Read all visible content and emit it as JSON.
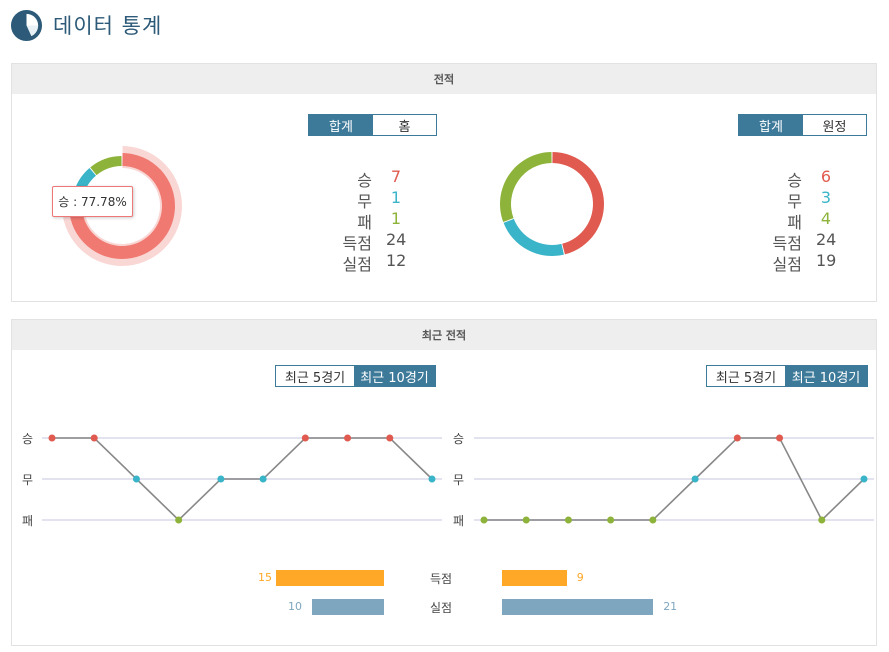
{
  "header": {
    "title": "데이터 통계",
    "logo_icon": "pie-chart-icon"
  },
  "record_panel": {
    "title": "전적",
    "home": {
      "toggle": {
        "total": "합계",
        "venue": "홈",
        "active": "total"
      },
      "tooltip": "승 : 77.78%",
      "stats": [
        {
          "label": "승",
          "value": "7",
          "color": "#e05a4f"
        },
        {
          "label": "무",
          "value": "1",
          "color": "#3ab4c8"
        },
        {
          "label": "패",
          "value": "1",
          "color": "#8db33a"
        },
        {
          "label": "득점",
          "value": "24",
          "color": "#555555"
        },
        {
          "label": "실점",
          "value": "12",
          "color": "#555555"
        }
      ]
    },
    "away": {
      "toggle": {
        "total": "합계",
        "venue": "원정",
        "active": "total"
      },
      "stats": [
        {
          "label": "승",
          "value": "6",
          "color": "#e05a4f"
        },
        {
          "label": "무",
          "value": "3",
          "color": "#3ab4c8"
        },
        {
          "label": "패",
          "value": "4",
          "color": "#8db33a"
        },
        {
          "label": "득점",
          "value": "24",
          "color": "#555555"
        },
        {
          "label": "실점",
          "value": "19",
          "color": "#555555"
        }
      ]
    }
  },
  "recent_panel": {
    "title": "최근 전적",
    "home_toggle": {
      "last5": "최근 5경기",
      "last10": "최근 10경기",
      "active": "last10"
    },
    "away_toggle": {
      "last5": "최근 5경기",
      "last10": "최근 10경기",
      "active": "last10"
    },
    "y_labels": [
      "승",
      "무",
      "패"
    ],
    "goals_label": "득점",
    "conceded_label": "실점",
    "home_goals": "15",
    "home_conceded": "10",
    "away_goals": "9",
    "away_conceded": "21"
  },
  "colors": {
    "win": "#e05a4f",
    "draw": "#3ab4c8",
    "loss": "#8db33a",
    "accent": "#3d7a9a",
    "goals": "#ffa726",
    "conceded": "#7ea7bf"
  },
  "chart_data": [
    {
      "type": "pie",
      "name": "home-donut",
      "labels": [
        "승",
        "무",
        "패"
      ],
      "values": [
        7,
        1,
        1
      ],
      "highlight": "승"
    },
    {
      "type": "pie",
      "name": "away-donut",
      "labels": [
        "승",
        "무",
        "패"
      ],
      "values": [
        6,
        3,
        4
      ]
    },
    {
      "type": "line",
      "name": "home-recent",
      "categories": [
        "승",
        "무",
        "패"
      ],
      "results": [
        "승",
        "승",
        "무",
        "패",
        "무",
        "무",
        "승",
        "승",
        "승",
        "무"
      ]
    },
    {
      "type": "line",
      "name": "away-recent",
      "categories": [
        "승",
        "무",
        "패"
      ],
      "results": [
        "패",
        "패",
        "패",
        "패",
        "패",
        "무",
        "승",
        "승",
        "패",
        "무"
      ]
    },
    {
      "type": "bar",
      "name": "goals-comparison",
      "categories": [
        "득점",
        "실점"
      ],
      "series": [
        {
          "values": [
            15,
            10
          ]
        },
        {
          "values": [
            9,
            21
          ]
        }
      ]
    }
  ]
}
